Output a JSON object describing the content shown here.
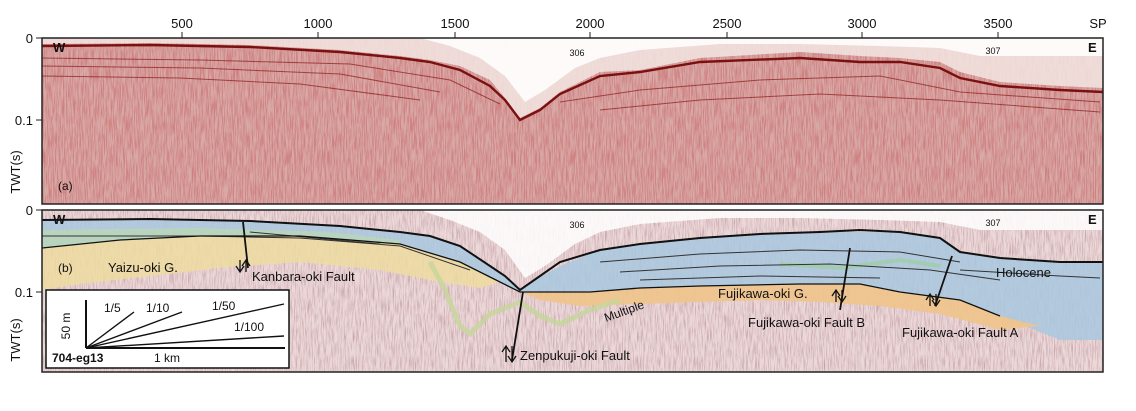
{
  "shotpoint_axis": {
    "ticks": [
      "500",
      "1000",
      "1500",
      "2000",
      "2500",
      "3000",
      "3500"
    ],
    "unit": "SP"
  },
  "panel_a": {
    "label": "(a)",
    "west": "W",
    "east": "E",
    "crossing_lines": [
      "306",
      "307"
    ],
    "twt_ticks": [
      "0",
      "0.1"
    ],
    "twt_label": "TWT(s)"
  },
  "panel_b": {
    "label": "(b)",
    "west": "W",
    "east": "E",
    "crossing_lines": [
      "306",
      "307"
    ],
    "twt_ticks": [
      "0",
      "0.1"
    ],
    "twt_label": "TWT(s)",
    "units": {
      "yaizu": "Yaizu-oki G.",
      "fujikawa_group": "Fujikawa-oki G.",
      "holocene": "Holocene",
      "multiple": "Multiple"
    },
    "faults": {
      "kanbara": "Kanbara-oki Fault",
      "zenpukuji": "Zenpukuji-oki Fault",
      "fujikawa_b": "Fujikawa-oki Fault B",
      "fujikawa_a": "Fujikawa-oki Fault A"
    }
  },
  "scale_box": {
    "line_id": "704-eg13",
    "horizontal": "1 km",
    "vertical": "50 m",
    "slopes": [
      "1/5",
      "1/10",
      "1/50",
      "1/100"
    ]
  }
}
